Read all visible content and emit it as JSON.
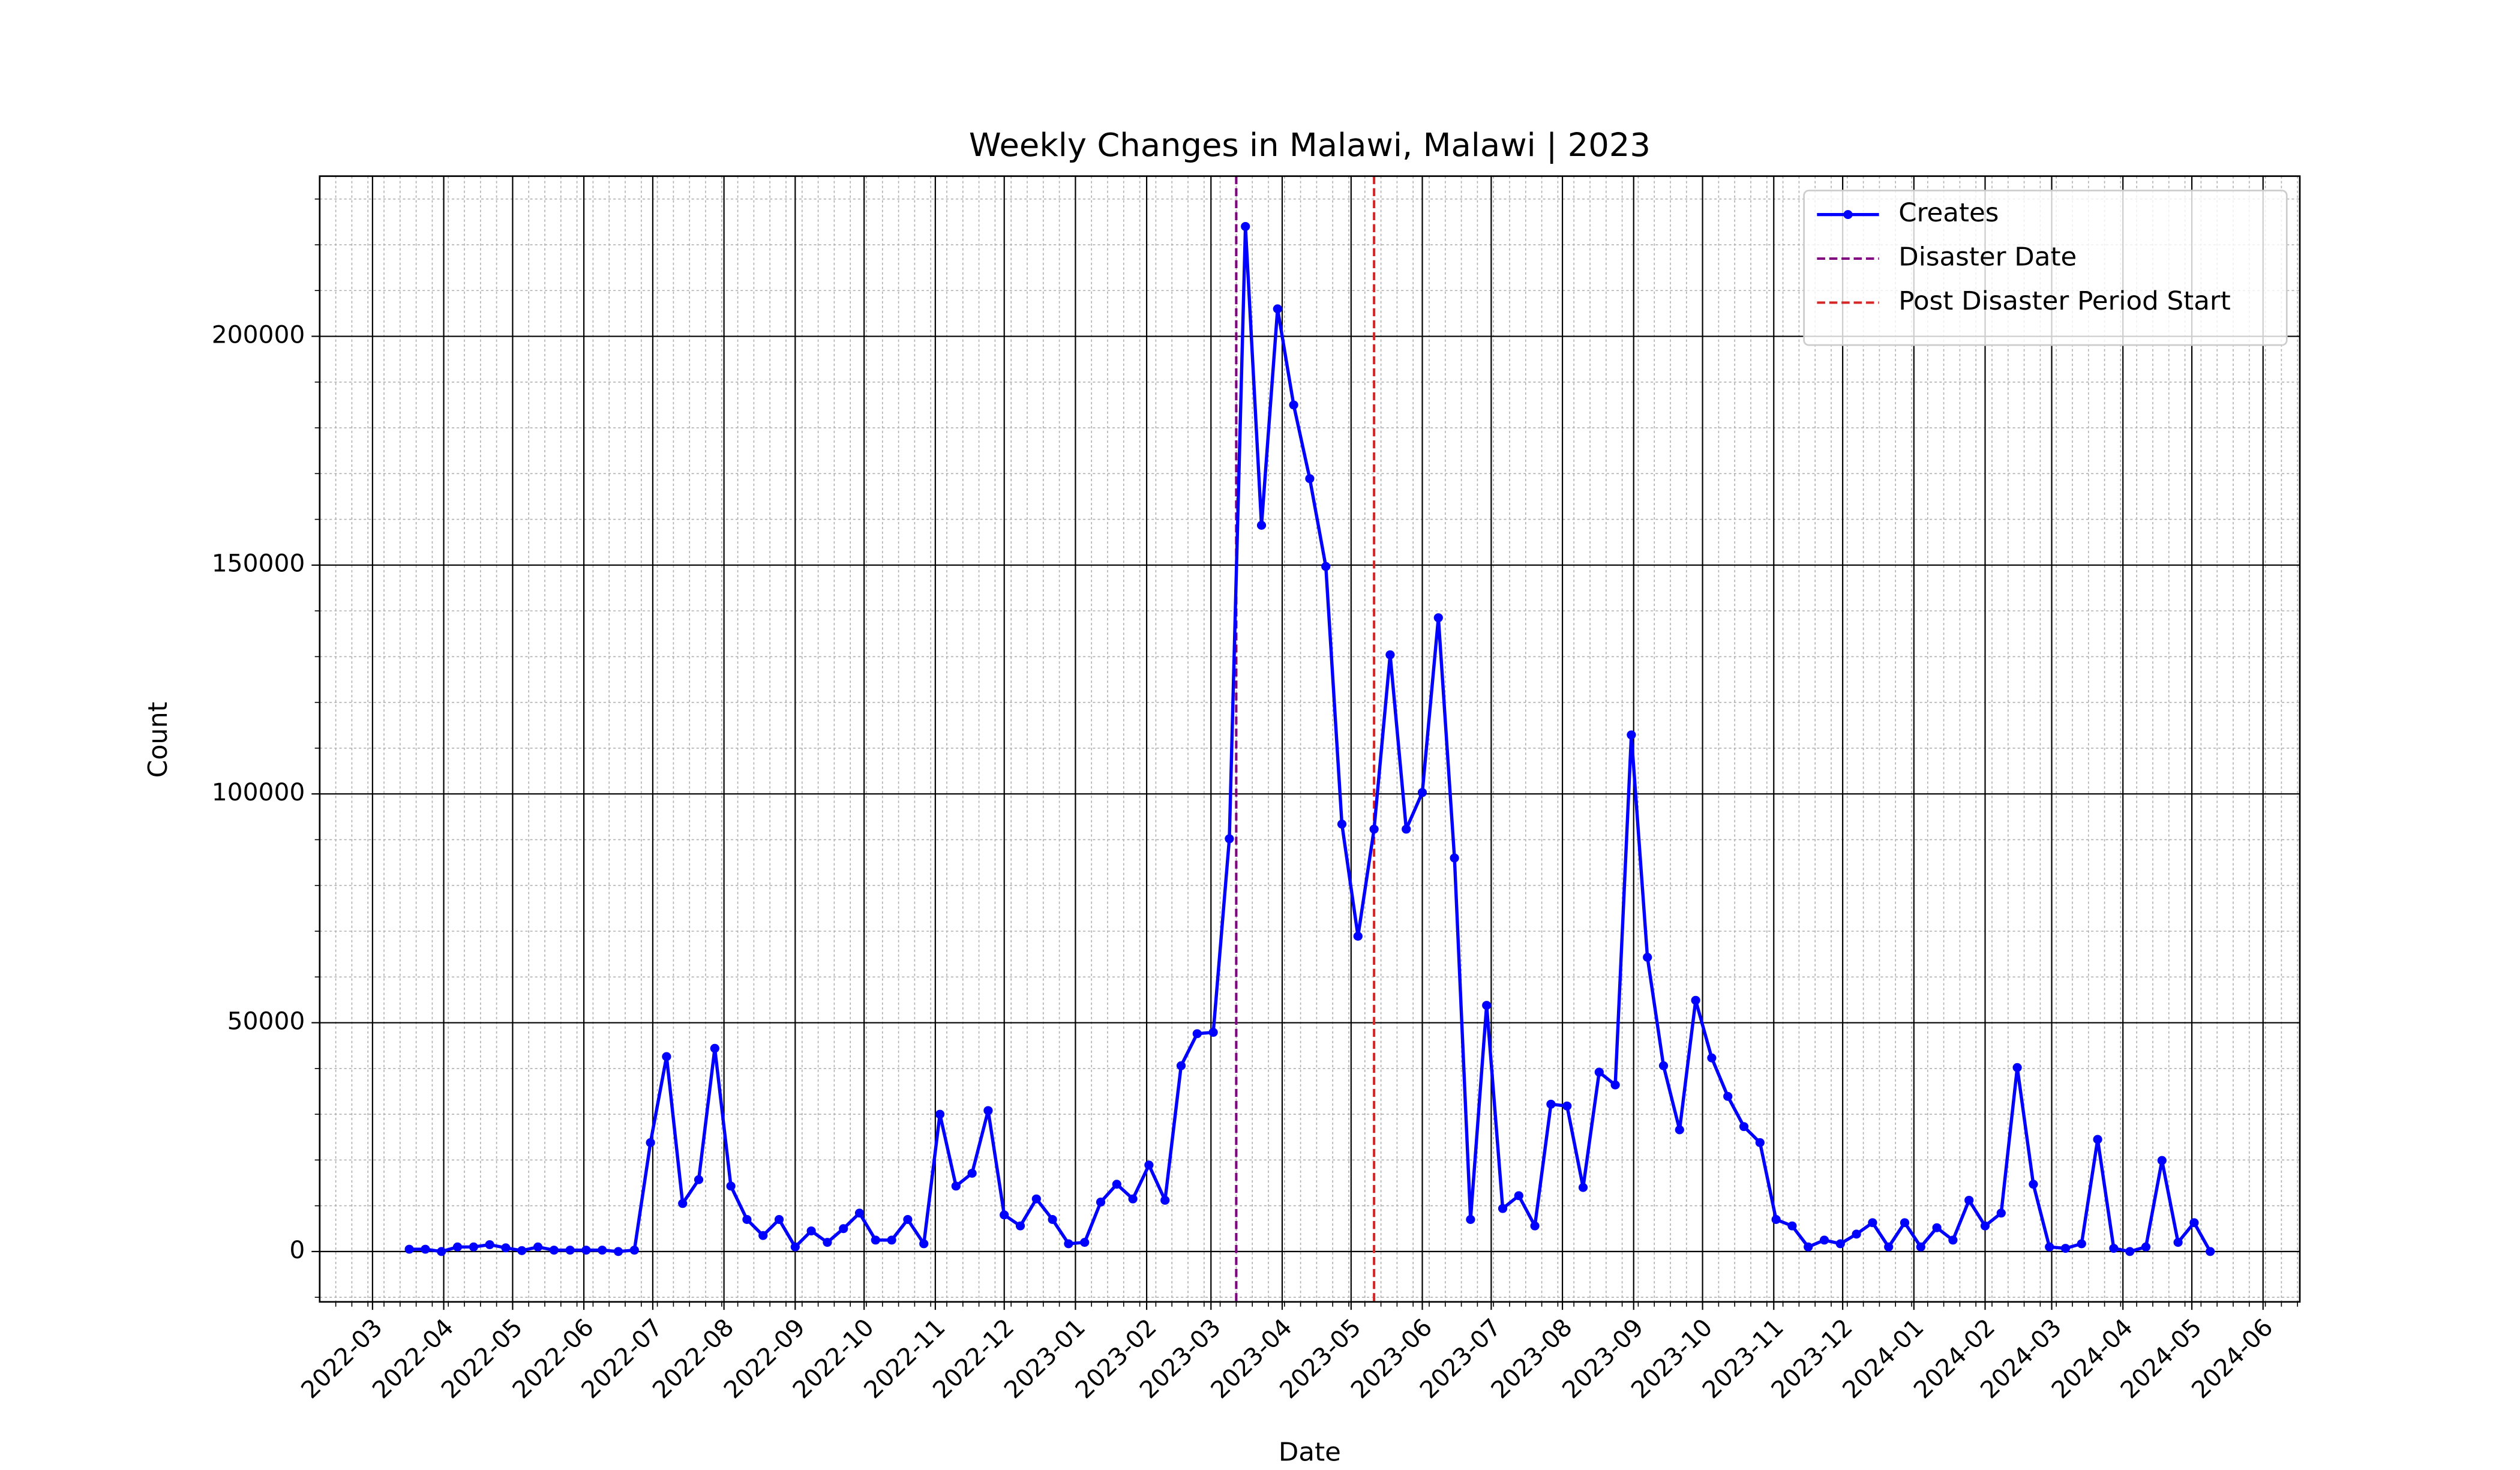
{
  "chart_data": {
    "type": "line",
    "title": "Weekly Changes in Malawi, Malawi | 2023",
    "x_label": "Date",
    "y_label": "Count",
    "x": [
      "2022-03-17",
      "2022-03-24",
      "2022-03-31",
      "2022-04-07",
      "2022-04-14",
      "2022-04-21",
      "2022-04-28",
      "2022-05-05",
      "2022-05-12",
      "2022-05-19",
      "2022-05-26",
      "2022-06-02",
      "2022-06-09",
      "2022-06-16",
      "2022-06-23",
      "2022-06-30",
      "2022-07-07",
      "2022-07-14",
      "2022-07-21",
      "2022-07-28",
      "2022-08-04",
      "2022-08-11",
      "2022-08-18",
      "2022-08-25",
      "2022-09-01",
      "2022-09-08",
      "2022-09-15",
      "2022-09-22",
      "2022-09-29",
      "2022-10-06",
      "2022-10-13",
      "2022-10-20",
      "2022-10-27",
      "2022-11-03",
      "2022-11-10",
      "2022-11-17",
      "2022-11-24",
      "2022-12-01",
      "2022-12-08",
      "2022-12-15",
      "2022-12-22",
      "2022-12-29",
      "2023-01-05",
      "2023-01-12",
      "2023-01-19",
      "2023-01-26",
      "2023-02-02",
      "2023-02-09",
      "2023-02-16",
      "2023-02-23",
      "2023-03-02",
      "2023-03-09",
      "2023-03-16",
      "2023-03-23",
      "2023-03-30",
      "2023-04-06",
      "2023-04-13",
      "2023-04-20",
      "2023-04-27",
      "2023-05-04",
      "2023-05-11",
      "2023-05-18",
      "2023-05-25",
      "2023-06-01",
      "2023-06-08",
      "2023-06-15",
      "2023-06-22",
      "2023-06-29",
      "2023-07-06",
      "2023-07-13",
      "2023-07-20",
      "2023-07-27",
      "2023-08-03",
      "2023-08-10",
      "2023-08-17",
      "2023-08-24",
      "2023-08-31",
      "2023-09-07",
      "2023-09-14",
      "2023-09-21",
      "2023-09-28",
      "2023-10-05",
      "2023-10-12",
      "2023-10-19",
      "2023-10-26",
      "2023-11-02",
      "2023-11-09",
      "2023-11-16",
      "2023-11-23",
      "2023-11-30",
      "2023-12-07",
      "2023-12-14",
      "2023-12-21",
      "2023-12-28",
      "2024-01-04",
      "2024-01-11",
      "2024-01-18",
      "2024-01-25",
      "2024-02-01",
      "2024-02-08",
      "2024-02-15",
      "2024-02-22",
      "2024-02-29",
      "2024-03-07",
      "2024-03-14",
      "2024-03-21",
      "2024-03-28",
      "2024-04-04",
      "2024-04-11",
      "2024-04-18",
      "2024-04-25",
      "2024-05-02",
      "2024-05-09"
    ],
    "series": [
      {
        "name": "Creates",
        "color": "blue",
        "values": [
          500,
          500,
          0,
          1000,
          1000,
          1500,
          800,
          200,
          1000,
          300,
          300,
          300,
          300,
          0,
          300,
          23800,
          42600,
          10500,
          15700,
          44400,
          14300,
          7000,
          3500,
          7000,
          1000,
          4500,
          2000,
          5000,
          8400,
          2500,
          2500,
          7000,
          1700,
          30000,
          14300,
          17100,
          30800,
          8000,
          5600,
          11500,
          7000,
          1700,
          2000,
          10800,
          14700,
          11500,
          18900,
          11200,
          40600,
          47600,
          47900,
          90200,
          224000,
          158700,
          206000,
          185000,
          168900,
          149700,
          93400,
          68900,
          92300,
          130400,
          92300,
          100300,
          138500,
          86000,
          7000,
          53800,
          9400,
          12200,
          5600,
          32200,
          31800,
          14000,
          39200,
          36400,
          112900,
          64300,
          40600,
          26600,
          54900,
          42300,
          33900,
          27300,
          23800,
          7000,
          5600,
          1000,
          2500,
          1700,
          3800,
          6300,
          1000,
          6300,
          1000,
          5200,
          2500,
          11200,
          5600,
          8400,
          40200,
          14700,
          1000,
          700,
          1700,
          24500,
          700,
          0,
          1000,
          19900,
          2000,
          6300,
          0
        ]
      }
    ],
    "vlines": [
      {
        "name": "Disaster Date",
        "x": "2023-03-12",
        "color": "purple"
      },
      {
        "name": "Post Disaster Period Start",
        "x": "2023-05-11",
        "color": "#d62728"
      }
    ],
    "xlim": [
      "2022-02-06",
      "2024-06-17"
    ],
    "xticks": [
      "2022-03",
      "2022-04",
      "2022-05",
      "2022-06",
      "2022-07",
      "2022-08",
      "2022-09",
      "2022-10",
      "2022-11",
      "2022-12",
      "2023-01",
      "2023-02",
      "2023-03",
      "2023-04",
      "2023-05",
      "2023-06",
      "2023-07",
      "2023-08",
      "2023-09",
      "2023-10",
      "2023-11",
      "2023-12",
      "2024-01",
      "2024-02",
      "2024-03",
      "2024-04",
      "2024-05",
      "2024-06"
    ],
    "ylim": [
      -11000,
      235000
    ],
    "yticks": [
      0,
      50000,
      100000,
      150000,
      200000
    ],
    "grid": true,
    "minor_grid": true,
    "legend": "upper right"
  }
}
